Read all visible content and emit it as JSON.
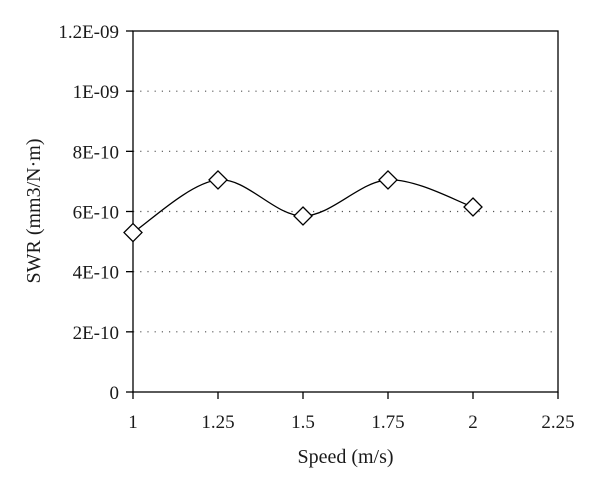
{
  "chart_data": {
    "type": "line",
    "xlabel": "Speed (m/s)",
    "ylabel": "SWR (mm3/N·m)",
    "xlim": [
      1,
      2.25
    ],
    "ylim": [
      0,
      1.2e-09
    ],
    "x_ticks": [
      1,
      1.25,
      1.5,
      1.75,
      2,
      2.25
    ],
    "x_tick_labels": [
      "1",
      "1.25",
      "1.5",
      "1.75",
      "2",
      "2.25"
    ],
    "y_ticks": [
      0,
      2e-10,
      4e-10,
      6e-10,
      8e-10,
      1e-09,
      1.2e-09
    ],
    "y_tick_labels": [
      "0",
      "2E-10",
      "4E-10",
      "6E-10",
      "8E-10",
      "1E-09",
      "1.2E-09"
    ],
    "grid": "horizontal dotted",
    "marker": "open diamond",
    "line_style": "smooth",
    "series": [
      {
        "x": [
          1,
          1.25,
          1.5,
          1.75,
          2
        ],
        "values": [
          5.3e-10,
          7.05e-10,
          5.85e-10,
          7.05e-10,
          6.15e-10
        ]
      }
    ]
  }
}
